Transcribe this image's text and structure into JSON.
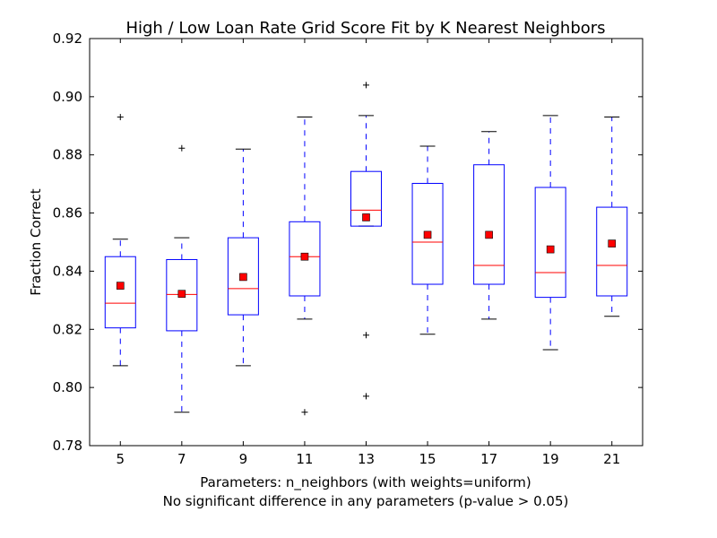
{
  "chart_data": {
    "type": "box",
    "title": "High / Low Loan Rate Grid Score Fit by K Nearest Neighbors",
    "xlabel": "Parameters: n_neighbors (with weights=uniform)",
    "xlabel_line2": "No significant difference in any parameters (p-value > 0.05)",
    "ylabel": "Fraction Correct",
    "ylim": [
      0.78,
      0.92
    ],
    "yticks": [
      0.78,
      0.8,
      0.82,
      0.84,
      0.86,
      0.88,
      0.9,
      0.92
    ],
    "ytick_labels": [
      "0.78",
      "0.80",
      "0.82",
      "0.84",
      "0.86",
      "0.88",
      "0.90",
      "0.92"
    ],
    "categories": [
      "5",
      "7",
      "9",
      "11",
      "13",
      "15",
      "17",
      "19",
      "21"
    ],
    "grid": false,
    "colors": {
      "box": "#0000ff",
      "median": "#ff0000",
      "mean": "#ff0000",
      "mean_edge": "#000000",
      "flier": "#000000"
    },
    "boxes": [
      {
        "label": "5",
        "whisker_low": 0.8075,
        "q1": 0.8205,
        "median": 0.829,
        "q3": 0.845,
        "whisker_high": 0.851,
        "mean": 0.835,
        "fliers": [
          0.893
        ]
      },
      {
        "label": "7",
        "whisker_low": 0.7915,
        "q1": 0.8195,
        "median": 0.832,
        "q3": 0.844,
        "whisker_high": 0.8515,
        "mean": 0.8322,
        "fliers": [
          0.8823
        ]
      },
      {
        "label": "9",
        "whisker_low": 0.8075,
        "q1": 0.825,
        "median": 0.834,
        "q3": 0.8515,
        "whisker_high": 0.882,
        "mean": 0.838,
        "fliers": []
      },
      {
        "label": "11",
        "whisker_low": 0.8235,
        "q1": 0.8315,
        "median": 0.845,
        "q3": 0.857,
        "whisker_high": 0.893,
        "mean": 0.845,
        "fliers": [
          0.7915
        ]
      },
      {
        "label": "13",
        "whisker_low": 0.8555,
        "q1": 0.8555,
        "median": 0.861,
        "q3": 0.8743,
        "whisker_high": 0.8935,
        "mean": 0.8585,
        "fliers": [
          0.904,
          0.818,
          0.797
        ]
      },
      {
        "label": "15",
        "whisker_low": 0.8183,
        "q1": 0.8355,
        "median": 0.85,
        "q3": 0.8702,
        "whisker_high": 0.883,
        "mean": 0.8525,
        "fliers": []
      },
      {
        "label": "17",
        "whisker_low": 0.8235,
        "q1": 0.8355,
        "median": 0.842,
        "q3": 0.8766,
        "whisker_high": 0.888,
        "mean": 0.8525,
        "fliers": []
      },
      {
        "label": "19",
        "whisker_low": 0.813,
        "q1": 0.831,
        "median": 0.8395,
        "q3": 0.8688,
        "whisker_high": 0.8935,
        "mean": 0.8475,
        "fliers": []
      },
      {
        "label": "21",
        "whisker_low": 0.8245,
        "q1": 0.8315,
        "median": 0.842,
        "q3": 0.862,
        "whisker_high": 0.893,
        "mean": 0.8495,
        "fliers": []
      }
    ]
  }
}
